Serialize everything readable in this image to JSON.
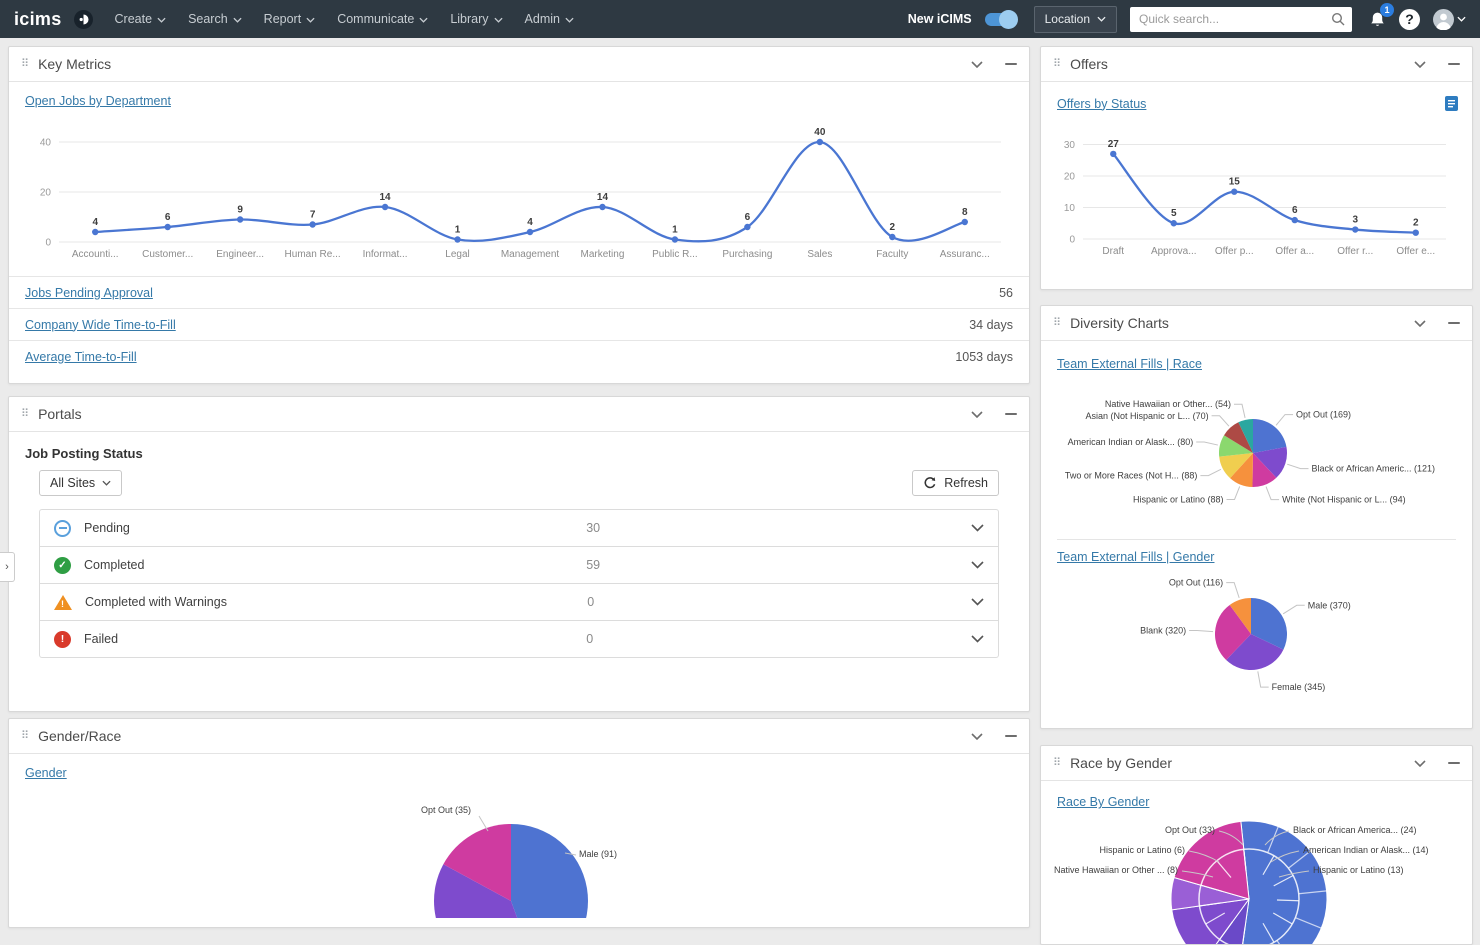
{
  "nav": {
    "brand": "icims",
    "menus": [
      {
        "label": "Create"
      },
      {
        "label": "Search"
      },
      {
        "label": "Report"
      },
      {
        "label": "Communicate"
      },
      {
        "label": "Library"
      },
      {
        "label": "Admin"
      }
    ],
    "new_icims_label": "New iCIMS",
    "location_label": "Location",
    "search_placeholder": "Quick search...",
    "notification_count": "1",
    "help_label": "?"
  },
  "panels": {
    "key_metrics": {
      "title": "Key Metrics",
      "rows": [
        {
          "label": "Jobs Pending Approval",
          "value": "56"
        },
        {
          "label": "Company Wide Time-to-Fill",
          "value": "34 days"
        },
        {
          "label": "Average Time-to-Fill",
          "value": "1053 days"
        }
      ]
    },
    "portals": {
      "title": "Portals",
      "subtitle": "Job Posting Status",
      "site_filter_label": "All Sites",
      "refresh_label": "Refresh",
      "statuses": [
        {
          "label": "Pending",
          "count": "30"
        },
        {
          "label": "Completed",
          "count": "59"
        },
        {
          "label": "Completed with Warnings",
          "count": "0"
        },
        {
          "label": "Failed",
          "count": "0"
        }
      ]
    },
    "gender_race": {
      "title": "Gender/Race"
    },
    "offers": {
      "title": "Offers"
    },
    "diversity_charts": {
      "title": "Diversity Charts"
    },
    "race_by_gender": {
      "title": "Race by Gender"
    }
  },
  "chart_data": [
    {
      "id": "open_jobs_by_department",
      "type": "line",
      "title": "Open Jobs by Department",
      "categories": [
        "Accounti...",
        "Customer...",
        "Engineer...",
        "Human Re...",
        "Informat...",
        "Legal",
        "Management",
        "Marketing",
        "Public R...",
        "Purchasing",
        "Sales",
        "Faculty",
        "Assuranc..."
      ],
      "values": [
        4,
        6,
        9,
        7,
        14,
        1,
        4,
        14,
        1,
        6,
        40,
        2,
        8
      ],
      "y_ticks": [
        0,
        20,
        40
      ],
      "ylim": [
        0,
        44
      ],
      "color": "#4a76d2"
    },
    {
      "id": "offers_by_status",
      "type": "line",
      "title": "Offers by Status",
      "categories": [
        "Draft",
        "Approva...",
        "Offer p...",
        "Offer a...",
        "Offer r...",
        "Offer e..."
      ],
      "values": [
        27,
        5,
        15,
        6,
        3,
        2
      ],
      "y_ticks": [
        0,
        10,
        20,
        30
      ],
      "ylim": [
        0,
        33
      ],
      "color": "#4a76d2"
    },
    {
      "id": "team_external_fills_race",
      "type": "pie",
      "title": "Team External Fills | Race",
      "slices": [
        {
          "label": "Opt Out (169)",
          "value": 169,
          "color": "#4e73d1"
        },
        {
          "label": "Black or African Americ... (121)",
          "value": 121,
          "color": "#7e4bcd"
        },
        {
          "label": "White (Not Hispanic or L... (94)",
          "value": 94,
          "color": "#cf3ba0"
        },
        {
          "label": "Hispanic or Latino (88)",
          "value": 88,
          "color": "#f6913d"
        },
        {
          "label": "Two or More Races (Not H... (88)",
          "value": 88,
          "color": "#f0ce4f"
        },
        {
          "label": "American Indian or Alask... (80)",
          "value": 80,
          "color": "#8bd86e"
        },
        {
          "label": "Asian (Not Hispanic or L... (70)",
          "value": 70,
          "color": "#ad4a45"
        },
        {
          "label": "Native Hawaiian or Other... (54)",
          "value": 54,
          "color": "#2aa7a0"
        }
      ]
    },
    {
      "id": "team_external_fills_gender",
      "type": "pie",
      "title": "Team External Fills | Gender",
      "slices": [
        {
          "label": "Male (370)",
          "value": 370,
          "color": "#4e73d1"
        },
        {
          "label": "Female (345)",
          "value": 345,
          "color": "#7e4bcd"
        },
        {
          "label": "Blank (320)",
          "value": 320,
          "color": "#cf3ba0"
        },
        {
          "label": "Opt Out (116)",
          "value": 116,
          "color": "#f6913d"
        }
      ]
    },
    {
      "id": "gender",
      "type": "pie",
      "title": "Gender",
      "slices": [
        {
          "label": "Male (91)",
          "value": 91,
          "color": "#4e73d1"
        },
        {
          "label": "",
          "value": 79,
          "color": "#7e4bcd"
        },
        {
          "label": "Opt Out (35)",
          "value": 35,
          "color": "#cf3ba0"
        }
      ]
    },
    {
      "id": "race_by_gender",
      "type": "sunburst",
      "title": "Race By Gender",
      "callouts": {
        "left": [
          "Opt Out (33)",
          "Hispanic or Latino (6)",
          "Native Hawaiian or Other ... (8)"
        ],
        "right": [
          "Black or African America... (24)",
          "American Indian or Alask... (14)",
          "Hispanic or Latino (13)"
        ]
      },
      "outer_segments": [
        {
          "color": "#4e73d1",
          "start": -6,
          "end": 188
        },
        {
          "color": "#6a49c8",
          "start": 188,
          "end": 216
        },
        {
          "color": "#7e4bcd",
          "start": 216,
          "end": 262
        },
        {
          "color": "#9a5fd6",
          "start": 262,
          "end": 286
        },
        {
          "color": "#cf3ba0",
          "start": 286,
          "end": 354
        }
      ],
      "outer_dividers": [
        22,
        52,
        84,
        112,
        146
      ],
      "inner_dividers": [
        -6,
        30,
        62,
        92,
        120,
        150,
        188,
        216,
        240,
        262,
        286,
        320,
        354
      ],
      "ring_radius": 50,
      "inner_radius": 28
    }
  ]
}
